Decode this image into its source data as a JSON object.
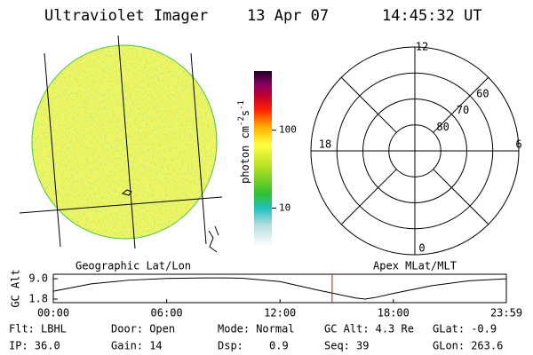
{
  "header": {
    "title": "Ultraviolet Imager",
    "date": "13 Apr 07",
    "time": "14:45:32 UT"
  },
  "colorbar": {
    "label": [
      "photon cm",
      "-2",
      "s",
      "-1"
    ],
    "scale": "log",
    "lim": [
      3.2,
      575
    ],
    "ticks": [
      10,
      100
    ]
  },
  "left_panel": {
    "label": "Geographic Lat/Lon"
  },
  "right_panel": {
    "label": "Apex MLat/MLT",
    "mlt_ticks": [
      0,
      6,
      12,
      18
    ],
    "lat_ticks": [
      60,
      70,
      80
    ],
    "rlim": [
      90,
      50
    ]
  },
  "chart_data": {
    "type": "line",
    "ylabel": "GC Alt",
    "x": [
      0,
      2,
      4,
      6,
      8,
      9,
      10,
      12,
      14,
      15,
      16,
      16.5,
      17,
      18,
      20,
      22,
      23.98
    ],
    "values": [
      4.6,
      7.2,
      8.5,
      9.1,
      9.3,
      9.3,
      9.2,
      8.0,
      5.0,
      3.6,
      2.2,
      1.8,
      2.3,
      3.8,
      6.5,
      8.3,
      9.0
    ],
    "color": "#000000",
    "marker_color": "#d01010",
    "xlim": [
      0,
      23.98
    ],
    "ylim": [
      0.55,
      10.6
    ],
    "xticks": [
      {
        "value": 0,
        "label": "00:00"
      },
      {
        "value": 6,
        "label": "06:00"
      },
      {
        "value": 12,
        "label": "12:00"
      },
      {
        "value": 18,
        "label": "18:00"
      },
      {
        "value": 23.98,
        "label": "23:59"
      }
    ],
    "yticks": [
      {
        "value": 9,
        "label": "9.0"
      },
      1.8
    ]
  },
  "info": [
    [
      {
        "label": "Flt:",
        "value": "LBHL"
      },
      {
        "label": "Door:",
        "value": "Open"
      },
      {
        "label": "Mode:",
        "value": "Normal"
      },
      {
        "label": "GC Alt:",
        "value": "4.3 Re"
      },
      {
        "label": "GLat:",
        "value": "-0.9"
      }
    ],
    [
      {
        "label": "IP:",
        "value": "36.0"
      },
      {
        "label": "Gain:",
        "value": "14"
      },
      {
        "label": "Dsp:",
        "value": "0.9"
      },
      {
        "label": "Seq:",
        "value": "39"
      },
      {
        "label": "GLon:",
        "value": "263.6"
      }
    ]
  ]
}
